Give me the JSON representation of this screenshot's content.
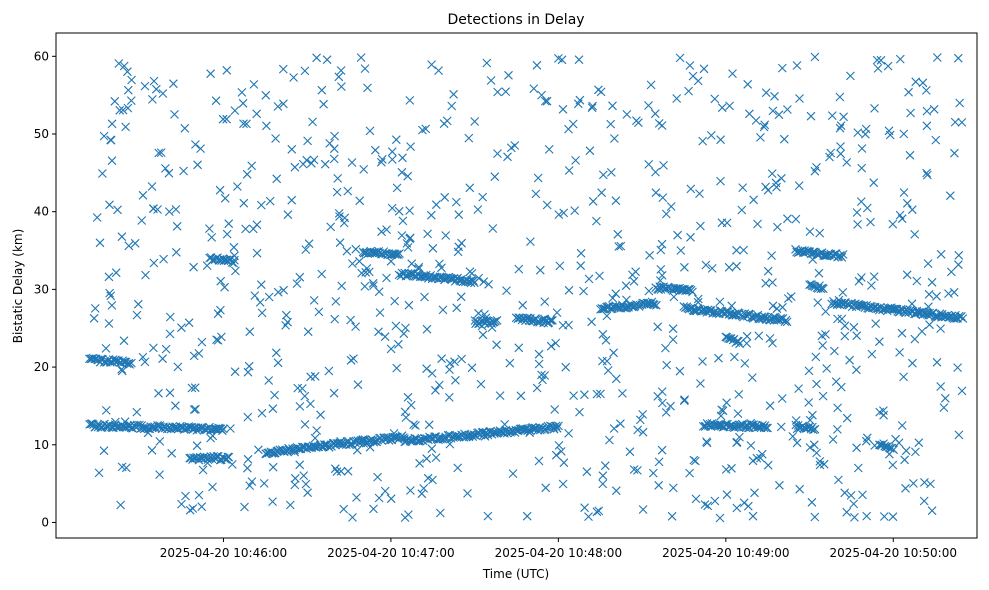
{
  "chart_data": {
    "type": "scatter",
    "title": "Detections in Delay",
    "xlabel": "Time (UTC)",
    "ylabel": "Bistatic Delay (km)",
    "marker": "x",
    "color": "#1f77b4",
    "grid": false,
    "legend": "none",
    "xlim": [
      "2025-04-20 10:45:00",
      "2025-04-20 10:50:30"
    ],
    "ylim": [
      -2,
      63
    ],
    "xticks": [
      "2025-04-20 10:46:00",
      "2025-04-20 10:47:00",
      "2025-04-20 10:48:00",
      "2025-04-20 10:49:00",
      "2025-04-20 10:50:00"
    ],
    "yticks": [
      0,
      10,
      20,
      30,
      40,
      50,
      60
    ],
    "point_count_estimate": 1500,
    "tracks": [
      {
        "t_start": "2025-04-20 10:45:12",
        "t_end": "2025-04-20 10:45:27",
        "delay_start": 21.0,
        "delay_end": 20.5
      },
      {
        "t_start": "2025-04-20 10:45:12",
        "t_end": "2025-04-20 10:46:00",
        "delay_start": 12.5,
        "delay_end": 12.0
      },
      {
        "t_start": "2025-04-20 10:45:48",
        "t_end": "2025-04-20 10:46:02",
        "delay_start": 8.2,
        "delay_end": 8.3
      },
      {
        "t_start": "2025-04-20 10:45:55",
        "t_end": "2025-04-20 10:46:04",
        "delay_start": 34.0,
        "delay_end": 33.6
      },
      {
        "t_start": "2025-04-20 10:46:15",
        "t_end": "2025-04-20 10:47:05",
        "delay_start": 9.0,
        "delay_end": 11.0
      },
      {
        "t_start": "2025-04-20 10:46:50",
        "t_end": "2025-04-20 10:47:03",
        "delay_start": 34.8,
        "delay_end": 34.5
      },
      {
        "t_start": "2025-04-20 10:47:03",
        "t_end": "2025-04-20 10:47:30",
        "delay_start": 32.0,
        "delay_end": 31.0
      },
      {
        "t_start": "2025-04-20 10:47:05",
        "t_end": "2025-04-20 10:48:00",
        "delay_start": 10.5,
        "delay_end": 12.3
      },
      {
        "t_start": "2025-04-20 10:47:30",
        "t_end": "2025-04-20 10:47:38",
        "delay_start": 25.8,
        "delay_end": 25.8
      },
      {
        "t_start": "2025-04-20 10:47:45",
        "t_end": "2025-04-20 10:47:58",
        "delay_start": 26.3,
        "delay_end": 25.8
      },
      {
        "t_start": "2025-04-20 10:48:15",
        "t_end": "2025-04-20 10:48:35",
        "delay_start": 27.5,
        "delay_end": 28.2
      },
      {
        "t_start": "2025-04-20 10:48:35",
        "t_end": "2025-04-20 10:48:48",
        "delay_start": 30.2,
        "delay_end": 29.8
      },
      {
        "t_start": "2025-04-20 10:48:45",
        "t_end": "2025-04-20 10:49:22",
        "delay_start": 27.6,
        "delay_end": 26.0
      },
      {
        "t_start": "2025-04-20 10:48:52",
        "t_end": "2025-04-20 10:49:15",
        "delay_start": 12.6,
        "delay_end": 12.3
      },
      {
        "t_start": "2025-04-20 10:49:00",
        "t_end": "2025-04-20 10:49:05",
        "delay_start": 24.0,
        "delay_end": 23.0
      },
      {
        "t_start": "2025-04-20 10:49:25",
        "t_end": "2025-04-20 10:49:42",
        "delay_start": 35.0,
        "delay_end": 34.3
      },
      {
        "t_start": "2025-04-20 10:49:25",
        "t_end": "2025-04-20 10:49:32",
        "delay_start": 12.3,
        "delay_end": 12.0
      },
      {
        "t_start": "2025-04-20 10:49:30",
        "t_end": "2025-04-20 10:49:35",
        "delay_start": 30.5,
        "delay_end": 30.2
      },
      {
        "t_start": "2025-04-20 10:49:38",
        "t_end": "2025-04-20 10:50:25",
        "delay_start": 28.3,
        "delay_end": 26.3
      },
      {
        "t_start": "2025-04-20 10:49:55",
        "t_end": "2025-04-20 10:50:00",
        "delay_start": 10.2,
        "delay_end": 9.5
      }
    ],
    "noise": {
      "t_range": [
        "2025-04-20 10:45:12",
        "2025-04-20 10:50:25"
      ],
      "delay_range": [
        0.5,
        60
      ],
      "count_estimate": 900
    }
  }
}
